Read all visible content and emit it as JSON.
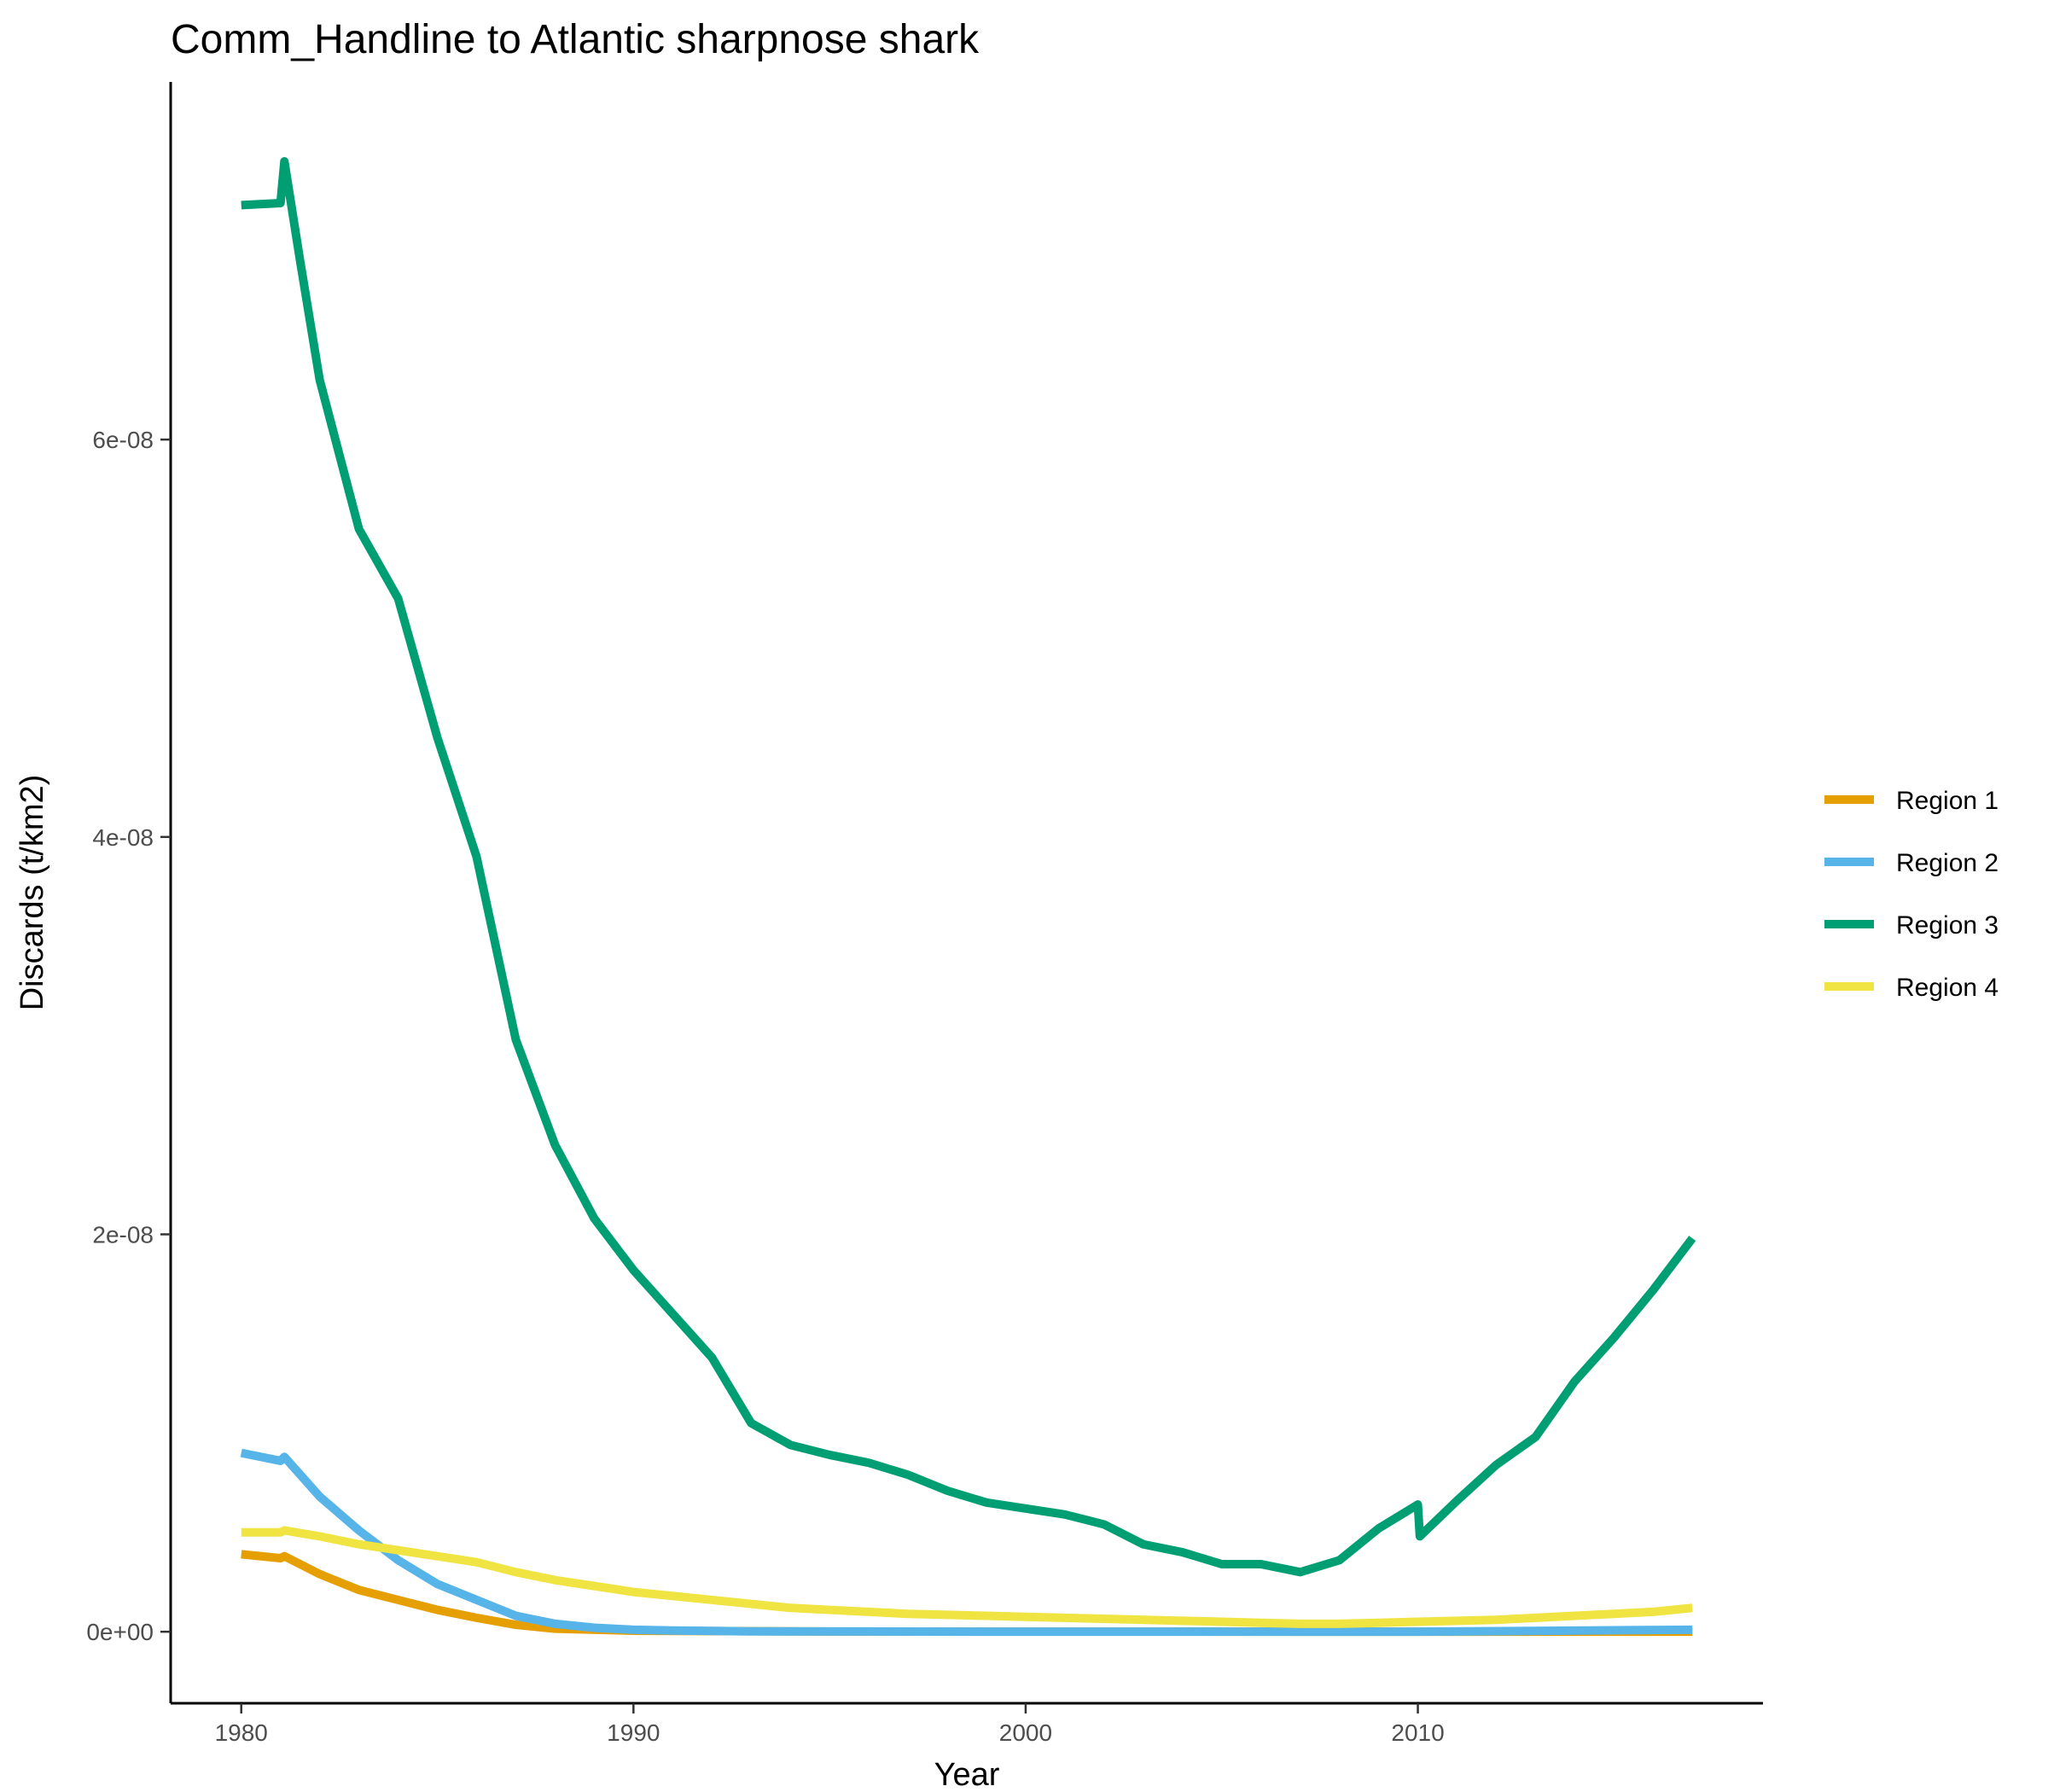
{
  "chart_data": {
    "type": "line",
    "title": "Comm_Handline to Atlantic sharpnose shark",
    "xlabel": "Year",
    "ylabel": "Discards (t/km2)",
    "xlim": [
      1978.2,
      2018.8
    ],
    "ylim": [
      -3.6e-09,
      7.8e-08
    ],
    "x_ticks": [
      1980,
      1990,
      2000,
      2010
    ],
    "x_tick_labels": [
      "1980",
      "1990",
      "2000",
      "2010"
    ],
    "y_ticks": [
      0,
      2e-08,
      4e-08,
      6e-08
    ],
    "y_tick_labels": [
      "0e+00",
      "2e-08",
      "4e-08",
      "6e-08"
    ],
    "grid": false,
    "legend_position": "right",
    "series": [
      {
        "name": "Region 1",
        "color": "#E69F00",
        "points": [
          [
            1980,
            3.9e-09
          ],
          [
            1981,
            3.7e-09
          ],
          [
            1981.1,
            3.8e-09
          ],
          [
            1982,
            2.9e-09
          ],
          [
            1983,
            2.1e-09
          ],
          [
            1984,
            1.6e-09
          ],
          [
            1985,
            1.1e-09
          ],
          [
            1986,
            7e-10
          ],
          [
            1987,
            3.5e-10
          ],
          [
            1988,
            1.5e-10
          ],
          [
            1990,
            5e-11
          ],
          [
            1995,
            1e-11
          ],
          [
            2017,
            0
          ]
        ]
      },
      {
        "name": "Region 2",
        "color": "#56B4E9",
        "points": [
          [
            1980,
            9e-09
          ],
          [
            1981,
            8.6e-09
          ],
          [
            1981.1,
            8.8e-09
          ],
          [
            1982,
            6.8e-09
          ],
          [
            1983,
            5.1e-09
          ],
          [
            1984,
            3.6e-09
          ],
          [
            1985,
            2.4e-09
          ],
          [
            1986,
            1.6e-09
          ],
          [
            1987,
            8e-10
          ],
          [
            1988,
            4e-10
          ],
          [
            1989,
            2e-10
          ],
          [
            1990,
            1e-10
          ],
          [
            1991,
            6e-11
          ],
          [
            1993,
            2e-11
          ],
          [
            2000,
            0
          ],
          [
            2010,
            0
          ],
          [
            2017,
            1e-10
          ]
        ]
      },
      {
        "name": "Region 3",
        "color": "#009E73",
        "points": [
          [
            1980,
            7.18e-08
          ],
          [
            1981,
            7.19e-08
          ],
          [
            1981.1,
            7.4e-08
          ],
          [
            1981.5,
            6.9e-08
          ],
          [
            1982,
            6.3e-08
          ],
          [
            1983,
            5.55e-08
          ],
          [
            1984,
            5.2e-08
          ],
          [
            1985,
            4.5e-08
          ],
          [
            1986,
            3.9e-08
          ],
          [
            1987,
            2.98e-08
          ],
          [
            1988,
            2.45e-08
          ],
          [
            1989,
            2.08e-08
          ],
          [
            1990,
            1.82e-08
          ],
          [
            1991,
            1.6e-08
          ],
          [
            1992,
            1.38e-08
          ],
          [
            1993,
            1.05e-08
          ],
          [
            1994,
            9.4e-09
          ],
          [
            1995,
            8.9e-09
          ],
          [
            1996,
            8.5e-09
          ],
          [
            1997,
            7.9e-09
          ],
          [
            1998,
            7.1e-09
          ],
          [
            1999,
            6.5e-09
          ],
          [
            2000,
            6.2e-09
          ],
          [
            2001,
            5.9e-09
          ],
          [
            2002,
            5.4e-09
          ],
          [
            2003,
            4.4e-09
          ],
          [
            2004,
            4e-09
          ],
          [
            2005,
            3.4e-09
          ],
          [
            2006,
            3.4e-09
          ],
          [
            2007,
            3e-09
          ],
          [
            2008,
            3.6e-09
          ],
          [
            2009,
            5.2e-09
          ],
          [
            2010,
            6.4e-09
          ],
          [
            2010.05,
            4.8e-09
          ],
          [
            2011,
            6.6e-09
          ],
          [
            2012,
            8.4e-09
          ],
          [
            2013,
            9.8e-09
          ],
          [
            2014,
            1.26e-08
          ],
          [
            2015,
            1.48e-08
          ],
          [
            2016,
            1.72e-08
          ],
          [
            2017,
            1.98e-08
          ]
        ]
      },
      {
        "name": "Region 4",
        "color": "#F0E442",
        "points": [
          [
            1980,
            5e-09
          ],
          [
            1981,
            5e-09
          ],
          [
            1981.1,
            5.1e-09
          ],
          [
            1982,
            4.8e-09
          ],
          [
            1983,
            4.4e-09
          ],
          [
            1984,
            4.1e-09
          ],
          [
            1985,
            3.8e-09
          ],
          [
            1986,
            3.5e-09
          ],
          [
            1987,
            3e-09
          ],
          [
            1988,
            2.6e-09
          ],
          [
            1989,
            2.3e-09
          ],
          [
            1990,
            2e-09
          ],
          [
            1991,
            1.8e-09
          ],
          [
            1992,
            1.6e-09
          ],
          [
            1993,
            1.4e-09
          ],
          [
            1994,
            1.2e-09
          ],
          [
            1995,
            1.1e-09
          ],
          [
            1996,
            1e-09
          ],
          [
            1997,
            9e-10
          ],
          [
            1998,
            8.5e-10
          ],
          [
            1999,
            8e-10
          ],
          [
            2000,
            7.5e-10
          ],
          [
            2001,
            7e-10
          ],
          [
            2002,
            6.5e-10
          ],
          [
            2003,
            6e-10
          ],
          [
            2004,
            5.5e-10
          ],
          [
            2005,
            5e-10
          ],
          [
            2006,
            4.5e-10
          ],
          [
            2007,
            4e-10
          ],
          [
            2008,
            4e-10
          ],
          [
            2009,
            4.5e-10
          ],
          [
            2010,
            5e-10
          ],
          [
            2011,
            5.5e-10
          ],
          [
            2012,
            6e-10
          ],
          [
            2013,
            7e-10
          ],
          [
            2014,
            8e-10
          ],
          [
            2015,
            9e-10
          ],
          [
            2016,
            1e-09
          ],
          [
            2017,
            1.2e-09
          ]
        ]
      }
    ]
  }
}
